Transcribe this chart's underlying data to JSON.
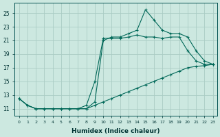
{
  "xlabel": "Humidex (Indice chaleur)",
  "xlim": [
    -0.5,
    23.5
  ],
  "ylim": [
    10.0,
    26.5
  ],
  "bg_color": "#cce8e0",
  "grid_color": "#aaccc4",
  "line_color": "#006858",
  "yticks": [
    11,
    13,
    15,
    17,
    19,
    21,
    23,
    25
  ],
  "xticks": [
    0,
    1,
    2,
    3,
    4,
    5,
    6,
    7,
    8,
    9,
    10,
    11,
    12,
    13,
    14,
    15,
    16,
    17,
    18,
    19,
    20,
    21,
    22,
    23
  ],
  "line1_x": [
    0,
    1,
    2,
    3,
    4,
    5,
    6,
    7,
    8,
    9,
    10,
    11,
    12,
    13,
    14,
    15,
    16,
    17,
    18,
    19,
    20,
    21,
    22,
    23
  ],
  "line1_y": [
    12.5,
    11.5,
    11.0,
    11.0,
    11.0,
    11.0,
    11.0,
    11.0,
    11.0,
    11.5,
    12.0,
    12.5,
    13.0,
    13.5,
    14.0,
    14.5,
    15.0,
    15.5,
    16.0,
    16.5,
    17.0,
    17.2,
    17.3,
    17.5
  ],
  "line2_x": [
    0,
    1,
    2,
    3,
    4,
    5,
    6,
    7,
    8,
    9,
    10,
    11,
    12,
    13,
    14,
    15,
    16,
    17,
    18,
    19,
    20,
    21,
    22,
    23
  ],
  "line2_y": [
    12.5,
    11.5,
    11.0,
    11.0,
    11.0,
    11.0,
    11.0,
    11.0,
    11.5,
    15.0,
    21.3,
    21.3,
    21.3,
    21.5,
    21.8,
    21.5,
    21.5,
    21.3,
    21.5,
    21.5,
    19.5,
    18.0,
    17.5,
    17.5
  ],
  "line3_x": [
    0,
    1,
    2,
    3,
    4,
    5,
    6,
    7,
    8,
    9,
    10,
    11,
    12,
    13,
    14,
    15,
    16,
    17,
    18,
    19,
    20,
    21,
    22,
    23
  ],
  "line3_y": [
    12.5,
    11.5,
    11.0,
    11.0,
    11.0,
    11.0,
    11.0,
    11.0,
    11.0,
    12.0,
    21.0,
    21.5,
    21.5,
    22.0,
    22.5,
    25.5,
    24.0,
    22.5,
    22.0,
    22.0,
    21.5,
    19.5,
    18.0,
    17.5
  ]
}
